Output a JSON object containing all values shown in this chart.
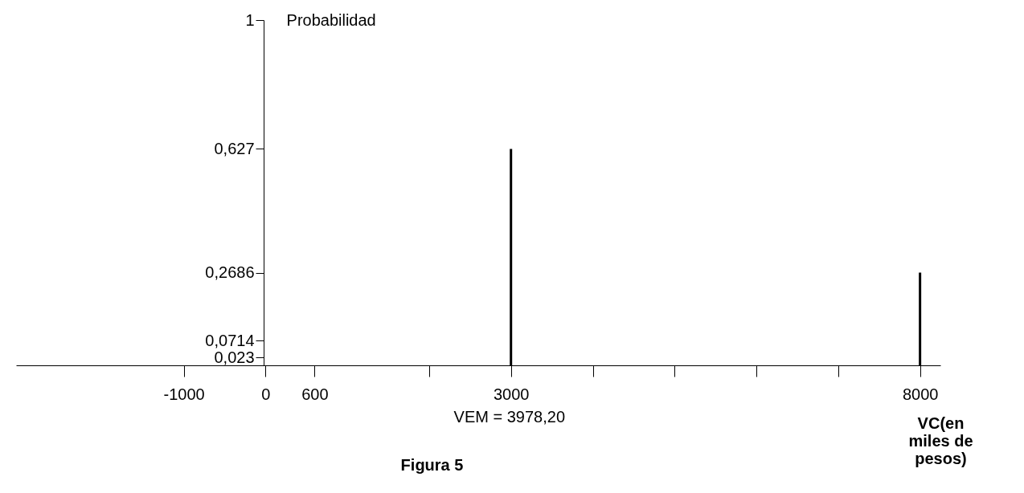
{
  "chart_data": {
    "type": "bar",
    "xlabel": "VC(en miles de pesos)",
    "ylabel": "Probabilidad",
    "x": [
      3000,
      8000
    ],
    "series": [
      {
        "color": "#000000",
        "values": [
          0.627,
          0.2686
        ]
      }
    ],
    "xlim": [
      -3000,
      8200
    ],
    "ylim": [
      0,
      1
    ],
    "xticks": [
      -1000,
      0,
      600,
      {
        "value": 2000,
        "label": null
      },
      3000,
      {
        "value": 4000,
        "label": null
      },
      {
        "value": 5000,
        "label": null
      },
      {
        "value": 6000,
        "label": null
      },
      {
        "value": 7000,
        "label": null
      },
      8000
    ],
    "yticks": [
      {
        "value": 0.023,
        "label": "0,023"
      },
      {
        "value": 0.0714,
        "label": "0,0714"
      },
      {
        "value": 0.2686,
        "label": "0,2686"
      },
      {
        "value": 0.627,
        "label": "0,627"
      },
      1
    ],
    "annotations": [
      "VEM = 3978,20",
      "Figura 5"
    ],
    "grid": false
  }
}
